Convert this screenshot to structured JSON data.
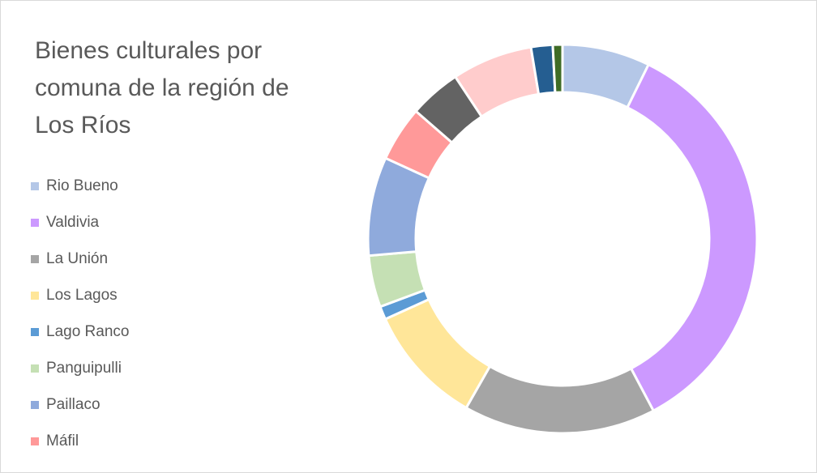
{
  "chart_data": {
    "type": "donut",
    "title": "Bienes culturales por comuna de la región de Los Ríos",
    "categories": [
      "Rio Bueno",
      "Valdivia",
      "La Unión",
      "Los Lagos",
      "Lago Ranco",
      "Panguipulli",
      "Paillaco",
      "Máfil",
      null,
      null,
      null,
      null
    ],
    "values": [
      7.3,
      35,
      16,
      10,
      1.1,
      4.3,
      8.2,
      4.6,
      4.3,
      6.7,
      1.8,
      0.8
    ],
    "colors": [
      "#b4c7e7",
      "#cc99ff",
      "#a5a5a5",
      "#ffe699",
      "#5b9bd5",
      "#c5e0b4",
      "#8faadc",
      "#ff9999",
      "#636363",
      "#ffcccc",
      "#255e91",
      "#3f6c26"
    ],
    "legend": "left"
  }
}
